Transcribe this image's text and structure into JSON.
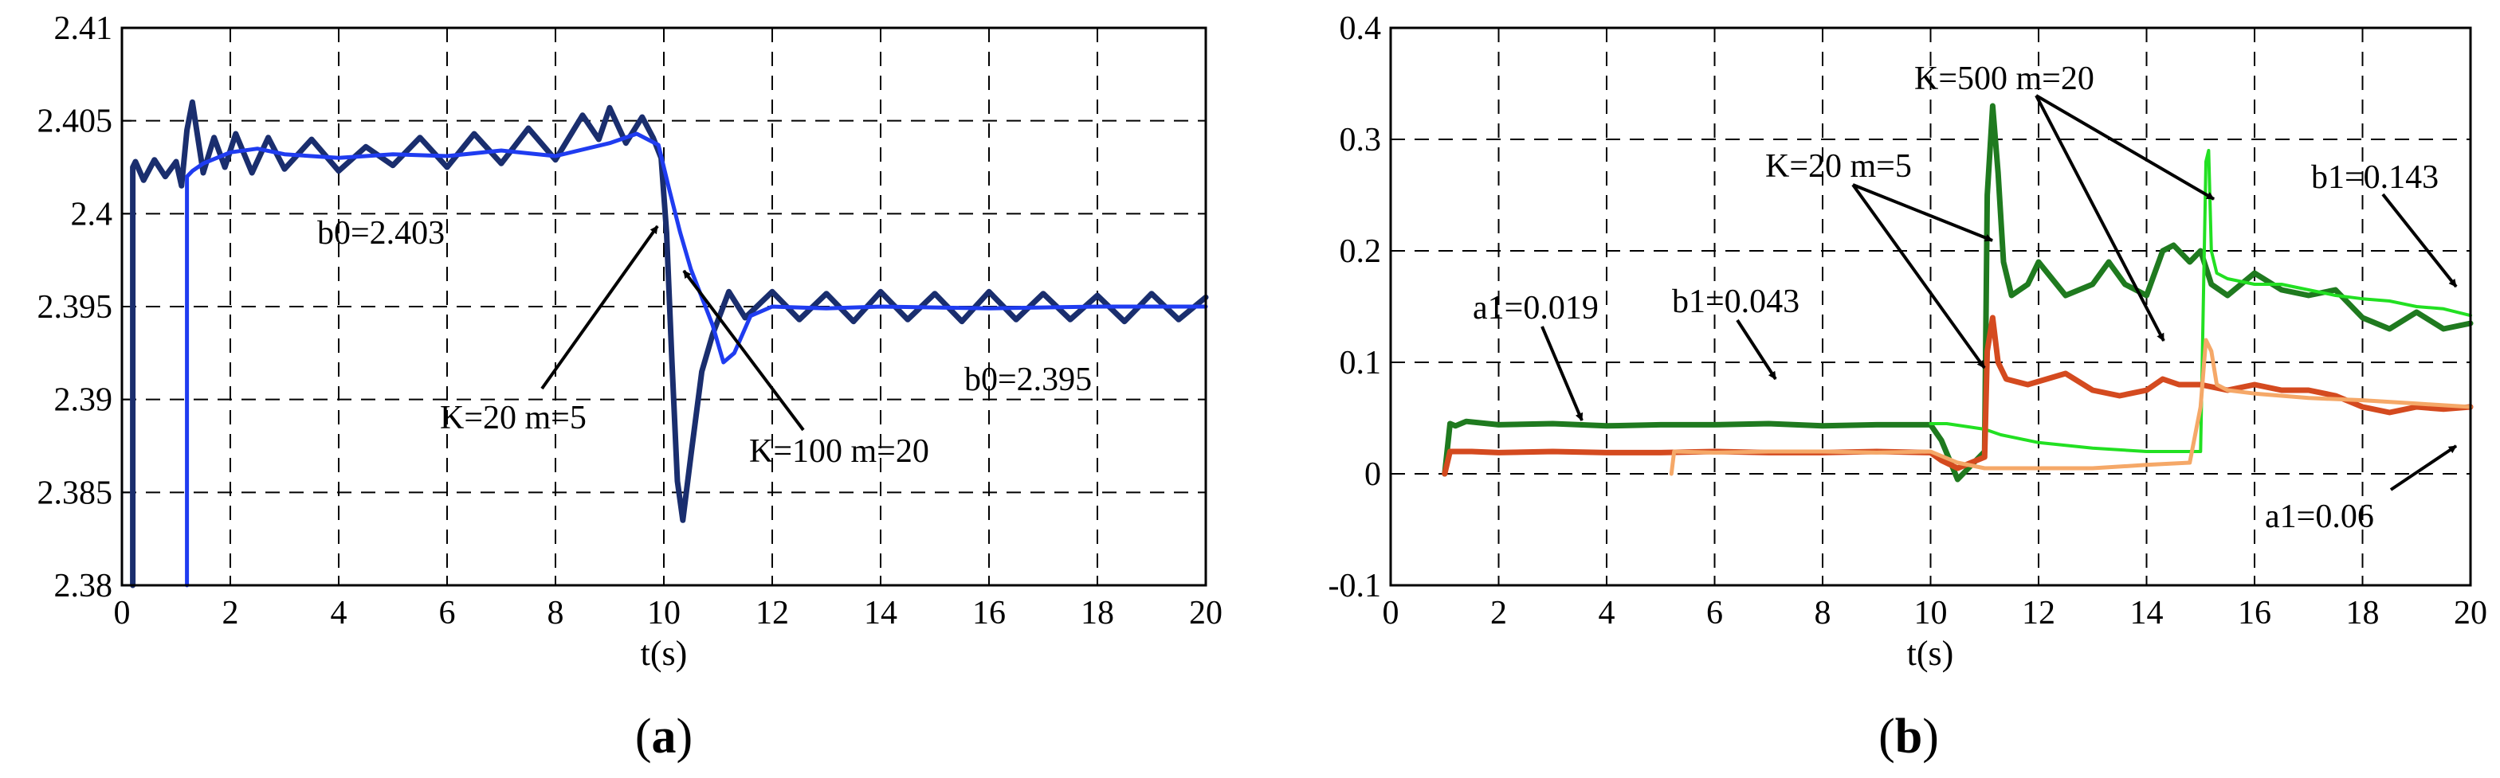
{
  "chart_data": [
    {
      "type": "line",
      "panel_label_open": "(",
      "panel_label_letter": "a",
      "panel_label_close": ")",
      "xlabel": "t(s)",
      "ylabel": "",
      "xlim": [
        0,
        20
      ],
      "ylim": [
        2.38,
        2.41
      ],
      "xticks": [
        "0",
        "2",
        "4",
        "6",
        "8",
        "10",
        "12",
        "14",
        "16",
        "18",
        "20"
      ],
      "yticks": [
        "2.38",
        "2.385",
        "2.39",
        "2.395",
        "2.4",
        "2.405",
        "2.41"
      ],
      "grid": true,
      "series": [
        {
          "color": "#1a2e6e",
          "x": [
            0.2,
            0.2,
            0.25,
            0.4,
            0.6,
            0.8,
            1.0,
            1.1,
            1.2,
            1.3,
            1.5,
            1.7,
            1.9,
            2.1,
            2.4,
            2.7,
            3.0,
            3.5,
            4.0,
            4.5,
            5.0,
            5.5,
            6.0,
            6.5,
            7.0,
            7.5,
            8.0,
            8.5,
            8.8,
            9.0,
            9.3,
            9.6,
            9.8,
            9.95,
            10.05,
            10.15,
            10.25,
            10.35,
            10.5,
            10.7,
            10.9,
            11.2,
            11.5,
            12.0,
            12.5,
            13.0,
            13.5,
            14.0,
            14.5,
            15.0,
            15.5,
            16.0,
            16.5,
            17.0,
            17.5,
            18.0,
            18.5,
            19.0,
            19.5,
            20.0
          ],
          "y": [
            2.38,
            2.4025,
            2.4028,
            2.4018,
            2.4029,
            2.402,
            2.4028,
            2.4015,
            2.4045,
            2.406,
            2.4022,
            2.4041,
            2.4025,
            2.4043,
            2.4022,
            2.4041,
            2.4024,
            2.404,
            2.4023,
            2.4036,
            2.4026,
            2.4041,
            2.4025,
            2.4043,
            2.4027,
            2.4046,
            2.4029,
            2.4053,
            2.404,
            2.4057,
            2.4038,
            2.4052,
            2.4041,
            2.403,
            2.399,
            2.392,
            2.3856,
            2.3835,
            2.387,
            2.3915,
            2.3935,
            2.3958,
            2.3944,
            2.3958,
            2.3943,
            2.3957,
            2.3942,
            2.3958,
            2.3943,
            2.3957,
            2.3942,
            2.3958,
            2.3943,
            2.3957,
            2.3943,
            2.3956,
            2.3942,
            2.3957,
            2.3943,
            2.3955
          ]
        },
        {
          "color": "#1f3cf0",
          "x": [
            1.2,
            1.2,
            1.3,
            1.5,
            2.0,
            2.5,
            3.0,
            4.0,
            5.0,
            6.0,
            7.0,
            8.0,
            9.0,
            9.5,
            9.9,
            10.1,
            10.3,
            10.5,
            10.7,
            10.9,
            11.1,
            11.3,
            11.6,
            12.0,
            13.0,
            14.0,
            16.0,
            18.0,
            20.0
          ],
          "y": [
            2.38,
            2.402,
            2.4023,
            2.4027,
            2.4033,
            2.4035,
            2.4032,
            2.403,
            2.4032,
            2.4031,
            2.4034,
            2.4031,
            2.4038,
            2.4043,
            2.4037,
            2.4013,
            2.399,
            2.397,
            2.3955,
            2.394,
            2.392,
            2.3925,
            2.3945,
            2.395,
            2.3949,
            2.395,
            2.3949,
            2.395,
            2.395
          ]
        }
      ],
      "annotations": [
        {
          "text": "b0=2.403"
        },
        {
          "text": "b0=2.395"
        },
        {
          "text": "K=20 m=5"
        },
        {
          "text": "K=100 m=20"
        }
      ]
    },
    {
      "type": "line",
      "panel_label_open": "(",
      "panel_label_letter": "b",
      "panel_label_close": ")",
      "xlabel": "t(s)",
      "ylabel": "",
      "xlim": [
        0,
        20
      ],
      "ylim": [
        -0.1,
        0.4
      ],
      "xticks": [
        "0",
        "2",
        "4",
        "6",
        "8",
        "10",
        "12",
        "14",
        "16",
        "18",
        "20"
      ],
      "yticks": [
        "-0.1",
        "0",
        "0.1",
        "0.2",
        "0.3",
        "0.4"
      ],
      "grid": true,
      "series": [
        {
          "color": "#1f7a1f",
          "x": [
            1.0,
            1.1,
            1.2,
            1.4,
            2.0,
            3.0,
            4.0,
            5.0,
            6.0,
            7.0,
            8.0,
            9.0,
            10.0,
            10.2,
            10.5,
            11.0,
            11.05,
            11.15,
            11.25,
            11.35,
            11.5,
            11.8,
            12.0,
            12.5,
            13.0,
            13.3,
            13.6,
            14.0,
            14.3,
            14.5,
            14.8,
            15.0,
            15.2,
            15.5,
            16.0,
            16.5,
            17.0,
            17.5,
            18.0,
            18.5,
            19.0,
            19.5,
            20.0
          ],
          "y": [
            0.0,
            0.045,
            0.043,
            0.047,
            0.044,
            0.045,
            0.043,
            0.044,
            0.044,
            0.045,
            0.043,
            0.044,
            0.044,
            0.03,
            -0.005,
            0.02,
            0.25,
            0.33,
            0.27,
            0.19,
            0.16,
            0.17,
            0.19,
            0.16,
            0.17,
            0.19,
            0.17,
            0.16,
            0.2,
            0.205,
            0.19,
            0.2,
            0.17,
            0.16,
            0.18,
            0.165,
            0.16,
            0.165,
            0.14,
            0.13,
            0.145,
            0.13,
            0.135
          ]
        },
        {
          "color": "#22e022",
          "x": [
            10.0,
            10.3,
            11.0,
            11.3,
            11.6,
            12.0,
            13.0,
            14.0,
            15.0,
            15.1,
            15.15,
            15.2,
            15.3,
            15.5,
            16.0,
            16.5,
            17.0,
            17.5,
            18.0,
            18.5,
            19.0,
            19.5,
            20.0
          ],
          "y": [
            0.045,
            0.045,
            0.04,
            0.035,
            0.032,
            0.028,
            0.023,
            0.02,
            0.02,
            0.28,
            0.29,
            0.2,
            0.18,
            0.175,
            0.17,
            0.17,
            0.165,
            0.16,
            0.157,
            0.155,
            0.15,
            0.148,
            0.142
          ]
        },
        {
          "color": "#d44a1f",
          "x": [
            1.0,
            1.1,
            1.5,
            2.0,
            3.0,
            4.0,
            5.0,
            6.0,
            7.0,
            8.0,
            9.0,
            10.0,
            10.2,
            10.5,
            11.0,
            11.05,
            11.15,
            11.25,
            11.4,
            11.8,
            12.5,
            13.0,
            13.5,
            14.0,
            14.3,
            14.6,
            15.0,
            15.5,
            16.0,
            16.5,
            17.0,
            17.5,
            18.0,
            18.5,
            19.0,
            19.5,
            20.0
          ],
          "y": [
            0.0,
            0.02,
            0.02,
            0.019,
            0.02,
            0.019,
            0.019,
            0.02,
            0.019,
            0.019,
            0.02,
            0.019,
            0.012,
            0.005,
            0.015,
            0.11,
            0.14,
            0.1,
            0.085,
            0.08,
            0.09,
            0.075,
            0.07,
            0.075,
            0.085,
            0.08,
            0.08,
            0.075,
            0.08,
            0.075,
            0.075,
            0.07,
            0.06,
            0.055,
            0.06,
            0.058,
            0.06
          ]
        },
        {
          "color": "#f5a868",
          "x": [
            5.2,
            5.25,
            6.0,
            7.0,
            8.0,
            9.0,
            10.0,
            10.5,
            11.0,
            11.5,
            12.0,
            13.0,
            14.0,
            14.8,
            15.0,
            15.1,
            15.2,
            15.3,
            15.5,
            16.0,
            17.0,
            18.0,
            19.0,
            20.0
          ],
          "y": [
            0.0,
            0.02,
            0.019,
            0.02,
            0.02,
            0.019,
            0.02,
            0.01,
            0.005,
            0.005,
            0.005,
            0.005,
            0.008,
            0.01,
            0.06,
            0.12,
            0.11,
            0.08,
            0.075,
            0.072,
            0.068,
            0.066,
            0.063,
            0.06
          ]
        }
      ],
      "annotations": [
        {
          "text": "K=500 m=20"
        },
        {
          "text": "K=20 m=5"
        },
        {
          "text": "b1=0.143"
        },
        {
          "text": "a1=0.019"
        },
        {
          "text": "b1=0.043"
        },
        {
          "text": "a1=0.06"
        }
      ]
    }
  ]
}
